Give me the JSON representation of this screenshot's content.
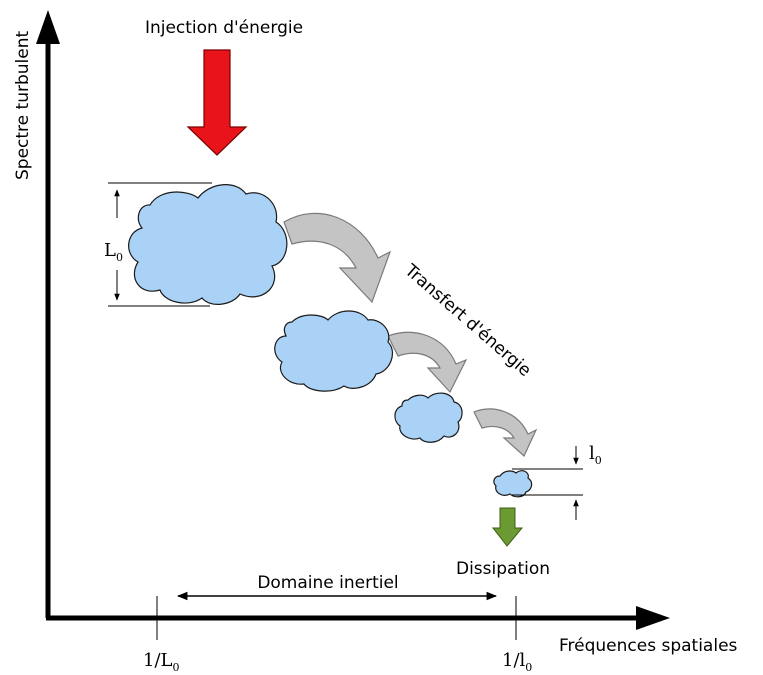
{
  "title": "Injection d'énergie",
  "axes": {
    "y_label": "Spectre turbulent",
    "x_label": "Fréquences spatiales"
  },
  "annotations": {
    "transfer": "Transfert d'énergie",
    "dissipation": "Dissipation",
    "inertial_range": "Domaine inertiel",
    "large_scale": {
      "base": "L",
      "sub": "0"
    },
    "small_scale": {
      "base": "l",
      "sub": "0"
    },
    "x_tick_large": {
      "base": "1/L",
      "sub": "0"
    },
    "x_tick_small": {
      "base": "1/l",
      "sub": "0"
    }
  },
  "colors": {
    "injection_arrow": "#e8141a",
    "dissipation_arrow": "#6b9a33",
    "cloud_fill": "#a9d2f6",
    "transfer_arrow": "#c4c4c4"
  }
}
